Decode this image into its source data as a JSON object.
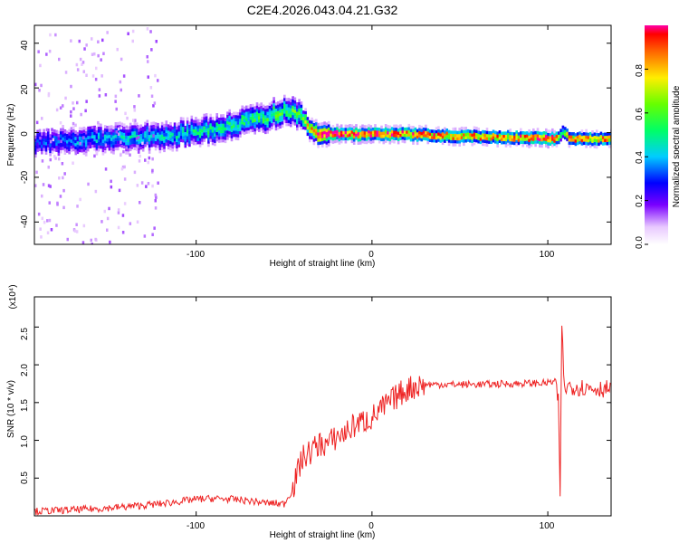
{
  "figure_title": "C2E4.2026.043.04.21.G32",
  "colors": {
    "snr_line": "#ee2222",
    "frame": "#000000",
    "background": "#ffffff"
  },
  "chart_data": [
    {
      "type": "heatmap",
      "name": "spectrogram",
      "xlabel": "Height of straight line (km)",
      "ylabel": "Frequency (Hz)",
      "xlim": [
        -192,
        136
      ],
      "ylim": [
        -50,
        48
      ],
      "x_ticks": [
        -100,
        0,
        100
      ],
      "x_tick_labels": [
        "-100",
        "0",
        "100"
      ],
      "y_ticks": [
        -40,
        -20,
        0,
        20,
        40
      ],
      "y_tick_labels": [
        "-40",
        "-20",
        "0",
        "20",
        "40"
      ],
      "colorbar": {
        "label": "Normalized spectral amplitude",
        "range": [
          0,
          1
        ],
        "ticks": [
          0.0,
          0.2,
          0.4,
          0.6,
          0.8
        ],
        "tick_labels": [
          "0.0",
          "0.2",
          "0.4",
          "0.6",
          "0.8"
        ]
      },
      "ridge": {
        "x": [
          -192,
          -170,
          -150,
          -120,
          -100,
          -80,
          -60,
          -48,
          -40,
          -35,
          -30,
          -20,
          0,
          20,
          50,
          80,
          100,
          104,
          106,
          108,
          110,
          112,
          136
        ],
        "freq": [
          -4,
          -3,
          -2,
          -1,
          1,
          4,
          8,
          11,
          7,
          2,
          0,
          0,
          0,
          0,
          -1,
          -1.5,
          -2,
          -2,
          -2,
          1,
          0,
          -2,
          -2
        ],
        "amplitude": [
          0.3,
          0.35,
          0.4,
          0.42,
          0.45,
          0.48,
          0.52,
          0.55,
          0.6,
          0.8,
          0.95,
          0.98,
          0.95,
          0.9,
          0.85,
          0.85,
          0.95,
          0.9,
          0.6,
          0.5,
          0.7,
          0.85,
          0.85
        ]
      }
    },
    {
      "type": "line",
      "name": "snr",
      "xlabel": "Height of straight line (km)",
      "ylabel": "SNR (10 * v/v)",
      "y_multiplier_label": "(x10⁴)",
      "xlim": [
        -192,
        136
      ],
      "ylim": [
        0,
        2.9
      ],
      "x_ticks": [
        -100,
        0,
        100
      ],
      "x_tick_labels": [
        "-100",
        "0",
        "100"
      ],
      "y_ticks": [
        0.5,
        1.0,
        1.5,
        2.0,
        2.5
      ],
      "y_tick_labels": [
        "0.5",
        "1.0",
        "1.5",
        "2.0",
        "2.5"
      ],
      "series": [
        {
          "name": "SNR",
          "x": [
            -192,
            -180,
            -160,
            -140,
            -120,
            -110,
            -100,
            -90,
            -80,
            -70,
            -60,
            -50,
            -45,
            -40,
            -35,
            -30,
            -25,
            -20,
            -15,
            -10,
            -5,
            0,
            5,
            10,
            15,
            20,
            25,
            30,
            40,
            60,
            80,
            100,
            104,
            106,
            107,
            108,
            109,
            110,
            112,
            120,
            136
          ],
          "y": [
            0.06,
            0.07,
            0.09,
            0.12,
            0.16,
            0.19,
            0.22,
            0.23,
            0.22,
            0.2,
            0.17,
            0.16,
            0.35,
            0.75,
            0.85,
            0.95,
            0.95,
            1.05,
            1.1,
            1.2,
            1.25,
            1.3,
            1.4,
            1.5,
            1.6,
            1.68,
            1.72,
            1.74,
            1.74,
            1.74,
            1.75,
            1.76,
            1.78,
            1.5,
            0.3,
            2.6,
            1.8,
            1.68,
            1.72,
            1.7,
            1.68
          ]
        }
      ]
    }
  ]
}
